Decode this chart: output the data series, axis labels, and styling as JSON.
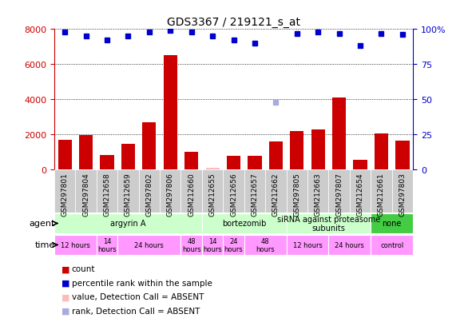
{
  "title": "GDS3367 / 219121_s_at",
  "samples": [
    "GSM297801",
    "GSM297804",
    "GSM212658",
    "GSM212659",
    "GSM297802",
    "GSM297806",
    "GSM212660",
    "GSM212655",
    "GSM212656",
    "GSM212657",
    "GSM212662",
    "GSM297805",
    "GSM212663",
    "GSM297807",
    "GSM212654",
    "GSM212661",
    "GSM297803"
  ],
  "counts": [
    1700,
    1950,
    850,
    1450,
    2700,
    6500,
    1000,
    100,
    800,
    800,
    1600,
    2200,
    2300,
    4100,
    550,
    2050,
    1650
  ],
  "absent_count_indices": [
    7
  ],
  "absent_rank_indices": [
    10
  ],
  "percentile_ranks": [
    98,
    95,
    92,
    95,
    98,
    99,
    98,
    95,
    92,
    90,
    48,
    97,
    98,
    97,
    88,
    97,
    96
  ],
  "ylim_left": [
    0,
    8000
  ],
  "ylim_right": [
    0,
    100
  ],
  "yticks_left": [
    0,
    2000,
    4000,
    6000,
    8000
  ],
  "yticks_right": [
    0,
    25,
    50,
    75,
    100
  ],
  "agent_groups": [
    {
      "label": "argyrin A",
      "start": 0,
      "end": 7,
      "color": "#ccffcc"
    },
    {
      "label": "bortezomib",
      "start": 7,
      "end": 11,
      "color": "#ccffcc"
    },
    {
      "label": "siRNA against proteasome\nsubunits",
      "start": 11,
      "end": 15,
      "color": "#ccffcc"
    },
    {
      "label": "none",
      "start": 15,
      "end": 17,
      "color": "#44cc44"
    }
  ],
  "time_groups": [
    {
      "label": "12 hours",
      "start": 0,
      "end": 2,
      "color": "#ff99ff"
    },
    {
      "label": "14\nhours",
      "start": 2,
      "end": 3,
      "color": "#ff99ff"
    },
    {
      "label": "24 hours",
      "start": 3,
      "end": 6,
      "color": "#ff99ff"
    },
    {
      "label": "48\nhours",
      "start": 6,
      "end": 7,
      "color": "#ff99ff"
    },
    {
      "label": "14\nhours",
      "start": 7,
      "end": 8,
      "color": "#ff99ff"
    },
    {
      "label": "24\nhours",
      "start": 8,
      "end": 9,
      "color": "#ff99ff"
    },
    {
      "label": "48\nhours",
      "start": 9,
      "end": 11,
      "color": "#ff99ff"
    },
    {
      "label": "12 hours",
      "start": 11,
      "end": 13,
      "color": "#ff99ff"
    },
    {
      "label": "24 hours",
      "start": 13,
      "end": 15,
      "color": "#ff99ff"
    },
    {
      "label": "control",
      "start": 15,
      "end": 17,
      "color": "#ff99ff"
    }
  ],
  "bar_color": "#cc0000",
  "absent_bar_color": "#ffbbbb",
  "dot_color": "#0000cc",
  "absent_dot_color": "#aaaadd",
  "bg_color": "#ffffff",
  "label_color_left": "#cc0000",
  "label_color_right": "#0000cc",
  "sample_bg": "#cccccc",
  "legend_items": [
    {
      "color": "#cc0000",
      "label": "count"
    },
    {
      "color": "#0000cc",
      "label": "percentile rank within the sample"
    },
    {
      "color": "#ffbbbb",
      "label": "value, Detection Call = ABSENT"
    },
    {
      "color": "#aaaadd",
      "label": "rank, Detection Call = ABSENT"
    }
  ]
}
